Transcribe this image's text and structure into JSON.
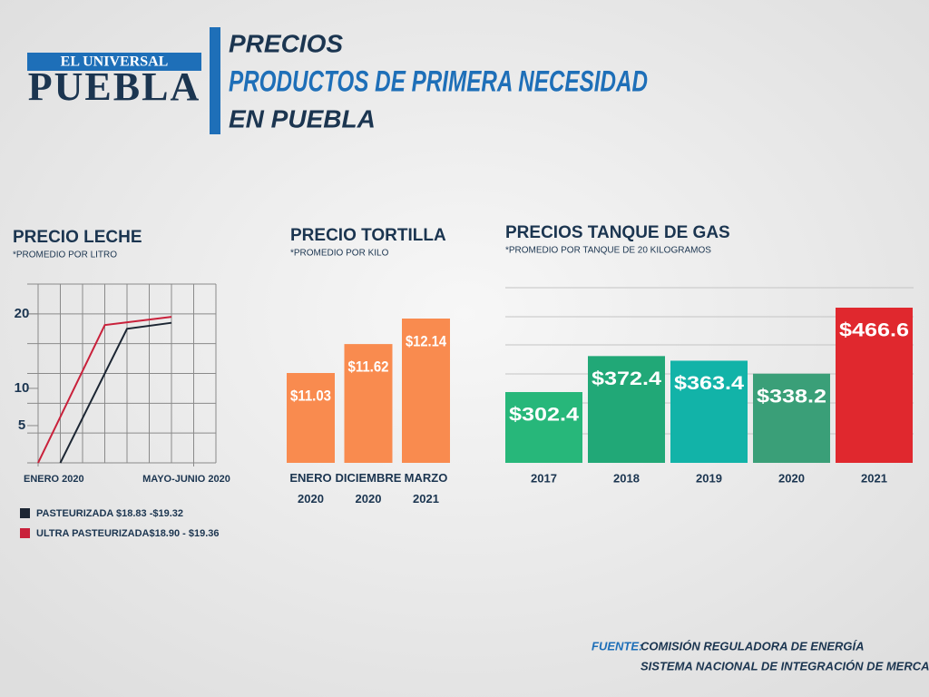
{
  "header": {
    "logo_top": "EL UNIVERSAL",
    "logo_bottom": "PUEBLA",
    "title_lines": [
      "PRECIOS",
      "PRODUCTOS DE PRIMERA NECESIDAD",
      "EN PUEBLA"
    ]
  },
  "chart_data": [
    {
      "type": "line",
      "title": "PRECIO LECHE",
      "subtitle": "*PROMEDIO POR LITRO",
      "xlim": [
        0,
        8
      ],
      "xticks": [
        {
          "value": 0,
          "label": "ENERO 2020"
        },
        {
          "value": 7,
          "label": "MAYO-JUNIO 2020"
        }
      ],
      "ylim": [
        0,
        24
      ],
      "yticks": [
        5,
        10,
        20
      ],
      "series": [
        {
          "name": "PASTEURIZADA $18.83 -$19.32",
          "color": "#1c2633",
          "x": [
            1,
            4,
            6
          ],
          "values": [
            0,
            18,
            18.8
          ]
        },
        {
          "name": "ULTRA PASTEURIZADA$18.90 - $19.36",
          "color": "#c9213b",
          "x": [
            0,
            3,
            6
          ],
          "values": [
            0,
            18.5,
            19.6
          ]
        }
      ]
    },
    {
      "type": "bar",
      "title": "PRECIO TORTILLA",
      "subtitle": "*PROMEDIO POR KILO",
      "categories": [
        "ENERO 2020",
        "DICIEMBRE 2020",
        "MARZO 2021"
      ],
      "values": [
        11.03,
        11.62,
        12.14
      ],
      "value_labels": [
        "$11.03",
        "$11.62",
        "$12.14"
      ],
      "colors": [
        "#f98b4f",
        "#f98b4f",
        "#f98b4f"
      ]
    },
    {
      "type": "bar",
      "title": "PRECIOS TANQUE DE GAS",
      "subtitle": "*PROMEDIO POR TANQUE DE 20 KILOGRAMOS",
      "categories": [
        "2017",
        "2018",
        "2019",
        "2020",
        "2021"
      ],
      "values": [
        302.4,
        372.4,
        363.4,
        338.2,
        466.6
      ],
      "value_labels": [
        "$302.4",
        "$372.4",
        "$363.4",
        "$338.2",
        "$466.6"
      ],
      "colors": [
        "#27b77a",
        "#21a877",
        "#12b3a8",
        "#3a9f78",
        "#e0282e"
      ]
    }
  ],
  "source": {
    "label": "FUENTE:",
    "lines": [
      "COMISIÓN REGULADORA DE ENERGÍA",
      "SISTEMA NACIONAL DE INTEGRACIÓN DE MERCADOS"
    ]
  }
}
